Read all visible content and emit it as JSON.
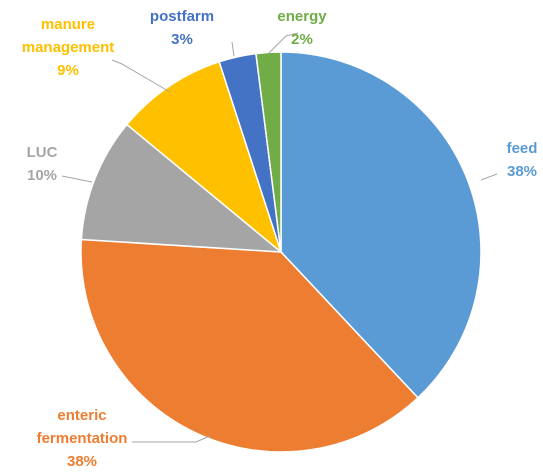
{
  "chart_data": {
    "type": "pie",
    "categories": [
      "feed",
      "enteric fermentation",
      "LUC",
      "manure management",
      "postfarm",
      "energy"
    ],
    "values": [
      38,
      38,
      10,
      9,
      3,
      2
    ],
    "value_labels": [
      "38%",
      "38%",
      "10%",
      "9%",
      "3%",
      "2%"
    ],
    "colors": [
      "#5b9bd5",
      "#ed7d31",
      "#a5a5a5",
      "#ffc000",
      "#4472c4",
      "#70ad47"
    ]
  }
}
